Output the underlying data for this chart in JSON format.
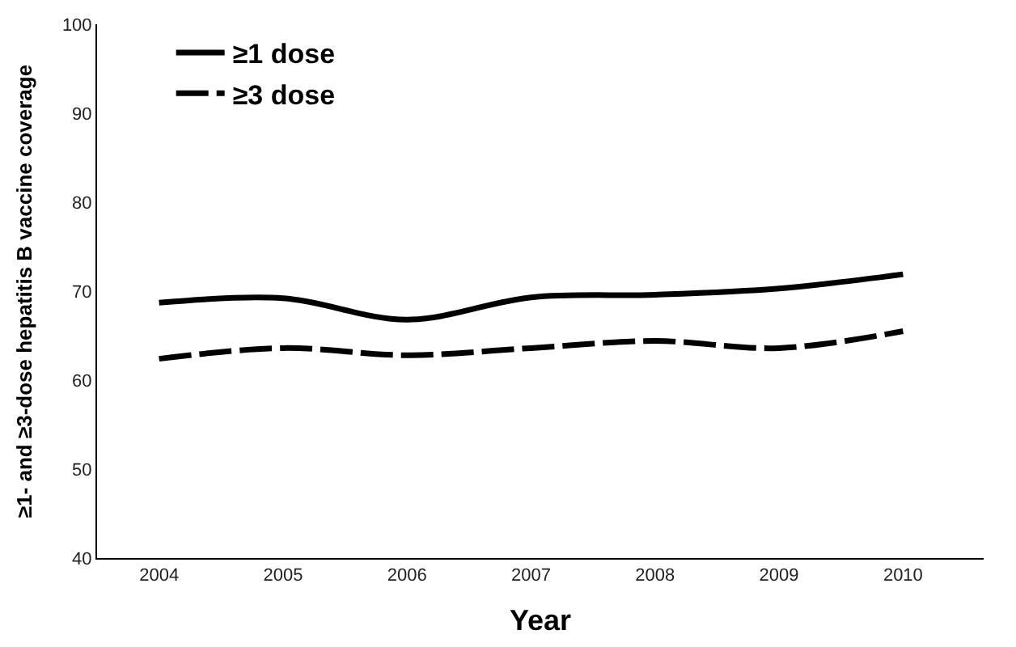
{
  "chart_data": {
    "type": "line",
    "xlabel": "Year",
    "ylabel": "≥1- and ≥3-dose hepatitis B vaccine coverage",
    "categories": [
      "2004",
      "2005",
      "2006",
      "2007",
      "2008",
      "2009",
      "2010"
    ],
    "series": [
      {
        "name": "≥1 dose",
        "color": "#000000",
        "line_style": "solid",
        "values": [
          68.7,
          69.2,
          66.8,
          69.3,
          69.6,
          70.3,
          71.9
        ]
      },
      {
        "name": "≥3 dose",
        "color": "#000000",
        "line_style": "dashed",
        "values": [
          62.4,
          63.6,
          62.8,
          63.6,
          64.4,
          63.6,
          65.5
        ]
      }
    ],
    "ylim": [
      40,
      100
    ],
    "yticks": [
      40,
      50,
      60,
      70,
      80,
      90,
      100
    ],
    "legend": "top left",
    "marker": "none"
  }
}
